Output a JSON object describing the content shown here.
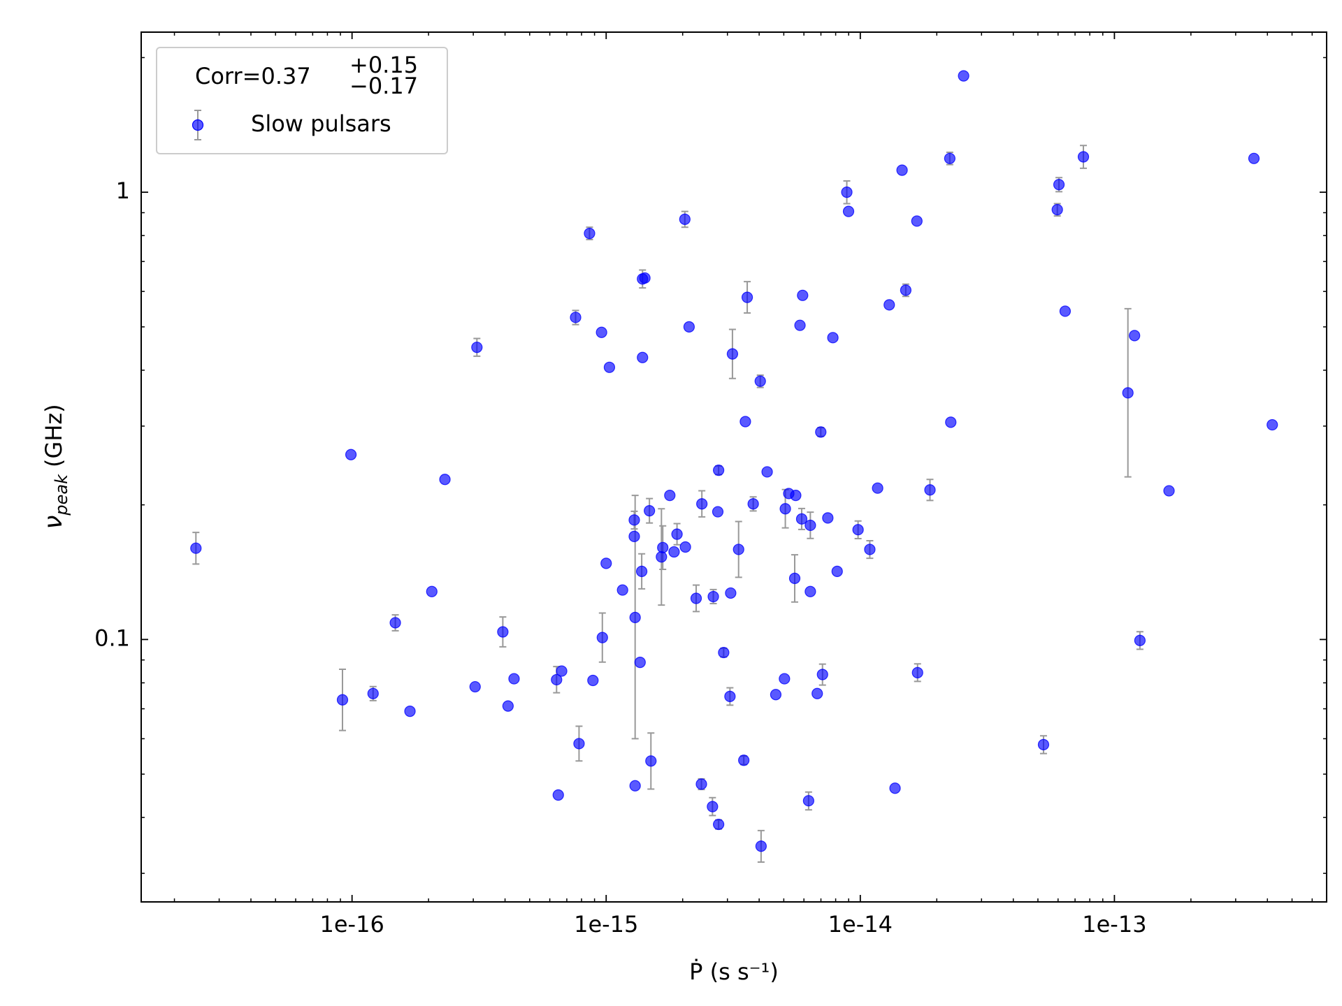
{
  "chart_data": {
    "type": "scatter",
    "legend_title": {
      "text": "Corr=0.37",
      "upper": "+0.15",
      "lower": "−0.17"
    },
    "x_label": "Ṗ (s s⁻¹)",
    "y_label": {
      "symbol": "ν",
      "subscript": "peak",
      "unit": "(GHz)"
    },
    "xscale": "log",
    "yscale": "log",
    "xlim": [
      1.48e-17,
      6.84e-13
    ],
    "ylim": [
      0.0259,
      2.28
    ],
    "xticks": [
      1e-16,
      1e-15,
      1e-14,
      1e-13
    ],
    "yticks": [
      0.1,
      1
    ],
    "legend": "upper left",
    "x": [
      2.43e-17,
      9.17e-17,
      9.9e-17,
      1.21e-16,
      1.48e-16,
      1.69e-16,
      2.06e-16,
      2.32e-16,
      3.05e-16,
      3.1e-16,
      3.92e-16,
      4.11e-16,
      4.34e-16,
      6.38e-16,
      6.68e-16,
      6.48e-16,
      7.58e-16,
      7.82e-16,
      8.6e-16,
      8.87e-16,
      9.59e-16,
      9.66e-16,
      1e-15,
      1.03e-15,
      1.16e-15,
      1.3e-15,
      1.3e-15,
      1.29e-15,
      1.29e-15,
      1.36e-15,
      1.38e-15,
      1.39e-15,
      1.39e-15,
      1.42e-15,
      1.48e-15,
      1.5e-15,
      1.65e-15,
      1.67e-15,
      1.78e-15,
      1.85e-15,
      1.9e-15,
      2.04e-15,
      2.05e-15,
      2.12e-15,
      2.26e-15,
      2.37e-15,
      2.38e-15,
      2.62e-15,
      2.64e-15,
      2.75e-15,
      2.77e-15,
      2.77e-15,
      2.9e-15,
      3.07e-15,
      3.09e-15,
      3.14e-15,
      3.32e-15,
      3.48e-15,
      3.53e-15,
      3.59e-15,
      3.79e-15,
      4.04e-15,
      4.07e-15,
      4.3e-15,
      4.65e-15,
      5.03e-15,
      5.07e-15,
      5.23e-15,
      5.52e-15,
      5.57e-15,
      5.79e-15,
      5.88e-15,
      5.93e-15,
      6.26e-15,
      6.36e-15,
      6.36e-15,
      6.77e-15,
      6.99e-15,
      7.1e-15,
      7.45e-15,
      7.8e-15,
      8.11e-15,
      8.85e-15,
      8.99e-15,
      9.8e-15,
      1.09e-14,
      1.17e-14,
      1.3e-14,
      1.37e-14,
      1.46e-14,
      1.51e-14,
      1.67e-14,
      1.68e-14,
      1.88e-14,
      2.25e-14,
      2.27e-14,
      2.55e-14,
      5.26e-14,
      5.96e-14,
      6.05e-14,
      6.4e-14,
      7.55e-14,
      1.13e-13,
      1.2e-13,
      1.26e-13,
      1.64e-13,
      3.54e-13,
      4.18e-13
    ],
    "series": [
      {
        "name": "Slow pulsars",
        "color": "#0000ff",
        "error_color": "#999999",
        "values": [
          0.16,
          0.0733,
          0.259,
          0.0757,
          0.109,
          0.0691,
          0.128,
          0.228,
          0.0784,
          0.45,
          0.104,
          0.071,
          0.0817,
          0.0813,
          0.085,
          0.0449,
          0.525,
          0.0585,
          0.809,
          0.081,
          0.486,
          0.101,
          0.148,
          0.406,
          0.129,
          0.0471,
          0.112,
          0.17,
          0.185,
          0.0889,
          0.142,
          0.427,
          0.64,
          0.643,
          0.194,
          0.0535,
          0.153,
          0.1605,
          0.21,
          0.157,
          0.172,
          0.87,
          0.161,
          0.5,
          0.1236,
          0.0475,
          0.201,
          0.0423,
          0.1247,
          0.193,
          0.0386,
          0.239,
          0.0935,
          0.0746,
          0.127,
          0.435,
          0.159,
          0.0537,
          0.307,
          0.582,
          0.201,
          0.378,
          0.0345,
          0.237,
          0.0753,
          0.0817,
          0.196,
          0.212,
          0.137,
          0.21,
          0.504,
          0.186,
          0.588,
          0.0436,
          0.18,
          0.128,
          0.0757,
          0.291,
          0.0835,
          0.187,
          0.473,
          0.142,
          1.0,
          0.906,
          0.176,
          0.159,
          0.218,
          0.56,
          0.0465,
          1.12,
          0.604,
          0.862,
          0.0843,
          0.216,
          1.19,
          0.306,
          1.82,
          0.0582,
          0.914,
          1.04,
          0.542,
          1.2,
          0.356,
          0.478,
          0.0995,
          0.215,
          1.19,
          0.302
        ],
        "yerr": [
          [
            0.0125,
            0.0135
          ],
          [
            0.0107,
            0.0125
          ],
          null,
          [
            0.0027,
            0.0028
          ],
          [
            0.0044,
            0.0045
          ],
          null,
          null,
          null,
          null,
          [
            0.02,
            0.021
          ],
          [
            0.0077,
            0.0083
          ],
          null,
          null,
          [
            0.0053,
            0.0057
          ],
          null,
          null,
          [
            0.019,
            0.019
          ],
          [
            0.005,
            0.0055
          ],
          [
            0.025,
            0.026
          ],
          null,
          null,
          [
            0.012,
            0.0136
          ],
          null,
          null,
          null,
          null,
          [
            0.052,
            0.098
          ],
          null,
          [
            0.0083,
            0.0085
          ],
          null,
          [
            0.0122,
            0.0134
          ],
          null,
          [
            0.029,
            0.03
          ],
          null,
          [
            0.0118,
            0.0126
          ],
          [
            0.0072,
            0.0083
          ],
          [
            0.0336,
            0.043
          ],
          [
            0.017,
            0.019
          ],
          null,
          null,
          [
            0.0091,
            0.0096
          ],
          [
            0.035,
            0.036
          ],
          null,
          null,
          [
            0.0081,
            0.0087
          ],
          [
            0.0013,
            0.0013
          ],
          [
            0.013,
            0.014
          ],
          [
            0.0019,
            0.002
          ],
          [
            0.0044,
            0.0046
          ],
          null,
          [
            0.0009,
            0.0009
          ],
          [
            0.0053,
            0.0054
          ],
          [
            0.0021,
            0.0021
          ],
          [
            0.0033,
            0.0034
          ],
          null,
          [
            0.0516,
            0.0585
          ],
          [
            0.0213,
            0.0246
          ],
          [
            0.0012,
            0.0012
          ],
          null,
          [
            0.045,
            0.049
          ],
          [
            0.0072,
            0.0074
          ],
          [
            0.012,
            0.012
          ],
          [
            0.0027,
            0.0029
          ],
          null,
          null,
          null,
          [
            0.0184,
            0.0204
          ],
          null,
          [
            0.0157,
            0.0177
          ],
          null,
          null,
          [
            0.0098,
            0.0103
          ],
          null,
          [
            0.002,
            0.002
          ],
          [
            0.0118,
            0.0126
          ],
          null,
          null,
          [
            0.0065,
            0.0066
          ],
          [
            0.0044,
            0.0046
          ],
          null,
          null,
          null,
          [
            0.057,
            0.06
          ],
          null,
          [
            0.0079,
            0.0081
          ],
          [
            0.0071,
            0.0073
          ],
          null,
          null,
          null,
          null,
          [
            0.019,
            0.019
          ],
          null,
          [
            0.0037,
            0.0039
          ],
          [
            0.0114,
            0.012
          ],
          [
            0.037,
            0.038
          ],
          null,
          null,
          [
            0.0026,
            0.0027
          ],
          [
            0.029,
            0.029
          ],
          [
            0.037,
            0.038
          ],
          null,
          [
            0.069,
            0.072
          ],
          [
            0.125,
            0.193
          ],
          null,
          [
            0.0044,
            0.0046
          ],
          null,
          null,
          null
        ]
      }
    ]
  }
}
